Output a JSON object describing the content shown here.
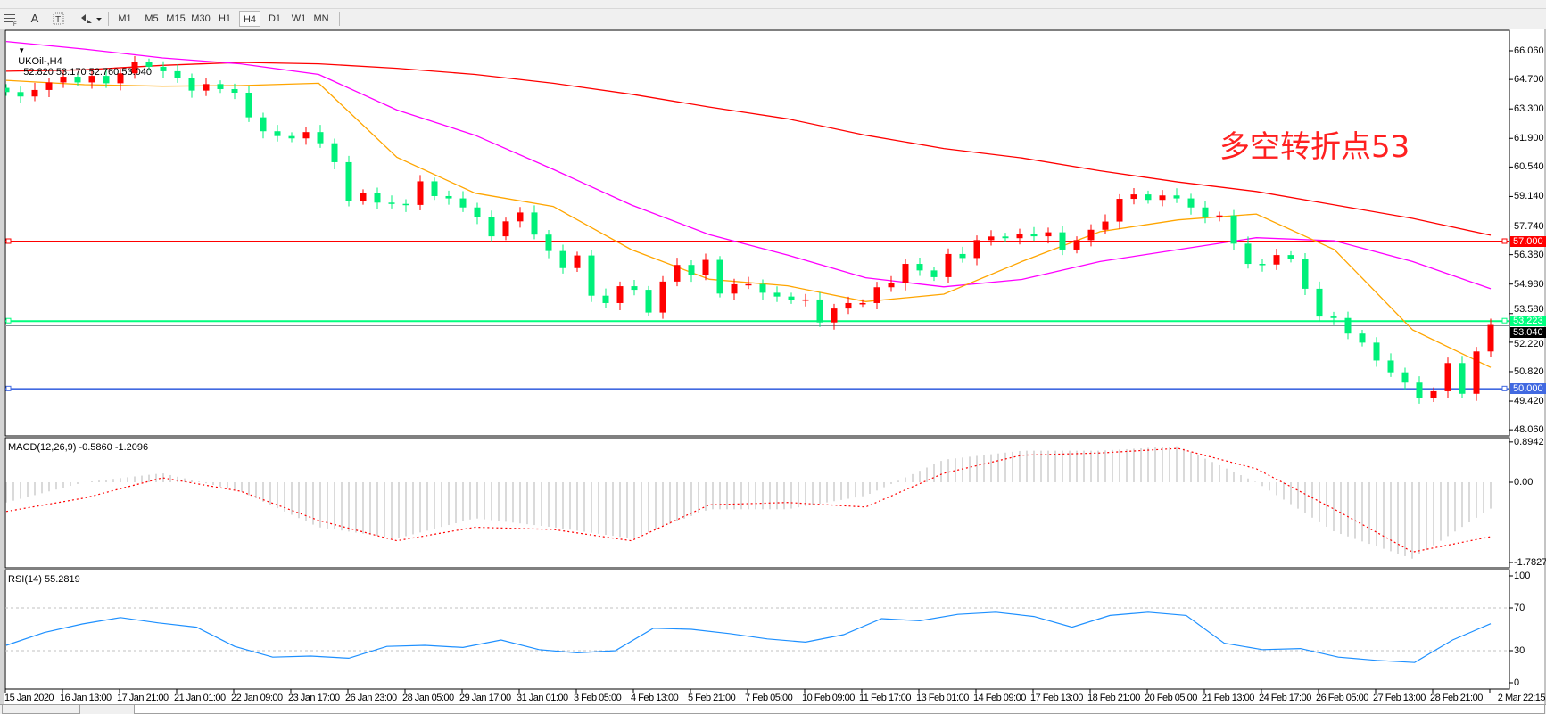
{
  "toolbar": {
    "tool_icons": [
      "grid-icon",
      "text-icon",
      "text-label-icon",
      "arrows-icon"
    ],
    "text_tool": "A",
    "timeframes": [
      "M1",
      "M5",
      "M15",
      "M30",
      "H1",
      "H4",
      "D1",
      "W1",
      "MN"
    ],
    "selected_timeframe": "H4"
  },
  "chart": {
    "symbol_label": "UKOil-,H4",
    "ohlc": "52.820 53.170 52.760 53.040",
    "annotation": "多空转折点53",
    "price_axis": [
      "66.060",
      "64.700",
      "63.300",
      "61.900",
      "60.540",
      "59.140",
      "57.740",
      "56.380",
      "54.980",
      "53.580",
      "52.220",
      "50.820",
      "49.420",
      "48.060"
    ],
    "hlines": [
      {
        "price": "57.000",
        "color": "#ff0000"
      },
      {
        "price": "53.223",
        "color": "#00ff7f"
      },
      {
        "price": "50.000",
        "color": "#4169e1"
      }
    ],
    "current_price": "53.040",
    "time_axis": [
      "15 Jan 2020",
      "16 Jan 13:00",
      "17 Jan 21:00",
      "21 Jan 01:00",
      "22 Jan 09:00",
      "23 Jan 17:00",
      "26 Jan 23:00",
      "28 Jan 05:00",
      "29 Jan 17:00",
      "31 Jan 01:00",
      "3 Feb 05:00",
      "4 Feb 13:00",
      "5 Feb 21:00",
      "7 Feb 05:00",
      "10 Feb 09:00",
      "11 Feb 17:00",
      "13 Feb 01:00",
      "14 Feb 09:00",
      "17 Feb 13:00",
      "18 Feb 21:00",
      "20 Feb 05:00",
      "21 Feb 13:00",
      "24 Feb 17:00",
      "26 Feb 05:00",
      "27 Feb 13:00",
      "28 Feb 21:00",
      "2 Mar 22:15"
    ]
  },
  "macd": {
    "label": "MACD(12,26,9) -0.5860 -1.2096",
    "axis": [
      "0.8942",
      "0.00",
      "-1.7827"
    ]
  },
  "rsi": {
    "label": "RSI(14) 55.2819",
    "axis": [
      "100",
      "70",
      "30",
      "0"
    ]
  },
  "chart_data": {
    "type": "candlestick",
    "symbol": "UKOil-",
    "timeframe": "H4",
    "ylim": [
      48.06,
      66.06
    ],
    "up_color": "#ff0000",
    "down_color": "#00f07a",
    "close": [
      64.1,
      63.89,
      64.2,
      64.56,
      64.83,
      64.56,
      64.87,
      64.52,
      64.99,
      65.51,
      65.3,
      65.09,
      64.76,
      64.17,
      64.48,
      64.24,
      64.07,
      62.9,
      62.24,
      62.01,
      61.9,
      62.2,
      61.67,
      60.77,
      58.93,
      59.3,
      58.85,
      58.79,
      58.74,
      59.86,
      59.16,
      59.05,
      58.62,
      58.17,
      57.25,
      57.96,
      58.38,
      57.33,
      56.55,
      55.74,
      56.34,
      54.43,
      54.08,
      54.88,
      54.71,
      53.63,
      55.1,
      55.89,
      55.43,
      56.13,
      54.53,
      54.97,
      54.98,
      54.57,
      54.39,
      54.22,
      54.25,
      53.16,
      53.82,
      54.08,
      54.08,
      54.83,
      55.02,
      55.94,
      55.63,
      55.31,
      56.41,
      56.22,
      57.07,
      57.24,
      57.16,
      57.35,
      57.25,
      57.44,
      56.62,
      57.07,
      57.56,
      57.95,
      59.03,
      59.24,
      58.98,
      59.19,
      59.05,
      58.62,
      58.14,
      58.24,
      56.9,
      55.94,
      55.91,
      56.36,
      56.19,
      54.76,
      53.44,
      53.37,
      52.63,
      52.2,
      51.35,
      50.79,
      50.3,
      49.56,
      49.89,
      51.23,
      49.77,
      51.78,
      53.04
    ],
    "moving_averages": [
      {
        "color": "#ff0000",
        "values": [
          65.09,
          65.16,
          65.37,
          65.51,
          65.44,
          65.23,
          64.94,
          64.52,
          64.0,
          63.39,
          62.83,
          62.05,
          61.42,
          60.97,
          60.36,
          59.83,
          59.38,
          58.74,
          58.1,
          57.3
        ]
      },
      {
        "color": "#ff00ff",
        "values": [
          66.5,
          66.14,
          65.72,
          65.44,
          64.94,
          63.25,
          62.05,
          60.43,
          58.74,
          57.33,
          56.36,
          55.28,
          54.85,
          55.2,
          56.05,
          56.62,
          57.18,
          57.04,
          56.05,
          54.76
        ]
      },
      {
        "color": "#ffa500",
        "values": [
          64.66,
          64.45,
          64.38,
          64.41,
          64.52,
          61.0,
          59.3,
          58.67,
          56.62,
          55.21,
          54.9,
          54.15,
          54.5,
          56.05,
          57.47,
          58.03,
          58.31,
          56.62,
          52.81,
          51.02
        ]
      }
    ],
    "macd_panel": {
      "ylim": [
        -1.7827,
        0.8942
      ],
      "histogram": [
        -0.45,
        0.0,
        0.2,
        -0.2,
        -1.0,
        -1.25,
        -0.8,
        -1.0,
        -1.25,
        -0.6,
        -0.6,
        -0.3,
        0.5,
        0.7,
        0.7,
        0.8,
        0.0,
        -1.1,
        -1.7,
        -0.586
      ],
      "signal": [
        -0.65,
        -0.35,
        0.1,
        -0.2,
        -0.85,
        -1.3,
        -1.0,
        -1.05,
        -1.3,
        -0.5,
        -0.45,
        -0.55,
        0.2,
        0.6,
        0.65,
        0.75,
        0.3,
        -0.6,
        -1.55,
        -1.2096
      ],
      "histogram_color": "#c0c0c0",
      "signal_color": "#ff0000"
    },
    "rsi_panel": {
      "ylim": [
        0,
        100
      ],
      "levels": [
        70,
        30
      ],
      "color": "#1e90ff",
      "values": [
        35,
        47,
        55,
        61,
        56,
        52,
        34,
        24,
        25,
        23,
        34,
        35,
        33,
        40,
        31,
        28,
        30,
        51,
        50,
        46,
        41,
        38,
        45,
        60,
        58,
        64,
        66,
        62,
        52,
        63,
        66,
        63,
        37,
        31,
        32,
        24,
        21,
        19,
        40,
        55.28
      ]
    }
  }
}
